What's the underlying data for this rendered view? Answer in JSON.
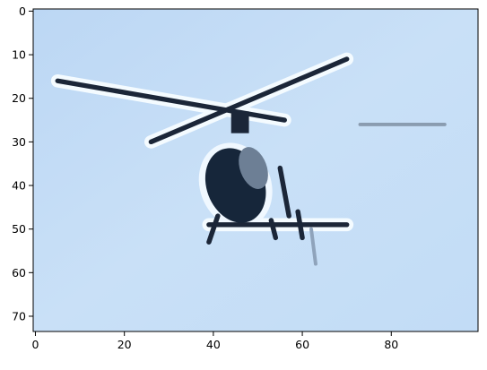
{
  "chart_data": {
    "type": "image",
    "xlim": [
      -0.5,
      99.5
    ],
    "ylim": [
      73.5,
      -0.5
    ],
    "xticks": [
      0,
      20,
      40,
      60,
      80
    ],
    "yticks": [
      0,
      10,
      20,
      30,
      40,
      50,
      60,
      70
    ]
  }
}
